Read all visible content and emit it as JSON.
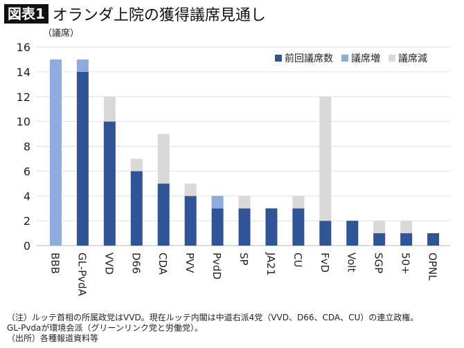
{
  "title": {
    "badge": "図表1",
    "text": "オランダ上院の獲得議席見通し"
  },
  "chart_data": {
    "type": "bar",
    "stacked": true,
    "ylabel": "（議席）",
    "ylim": [
      0,
      16
    ],
    "yticks": [
      0,
      2,
      4,
      6,
      8,
      10,
      12,
      14,
      16
    ],
    "grid": true,
    "legend_position": "top-right",
    "categories": [
      "BBB",
      "GL-PvdA",
      "VVD",
      "D66",
      "CDA",
      "PVV",
      "PvdD",
      "SP",
      "JA21",
      "CU",
      "FvD",
      "Volt",
      "SGP",
      "50+",
      "OPNL"
    ],
    "series": [
      {
        "name": "前回議席数",
        "color": "#2f5597",
        "values": [
          0,
          14,
          10,
          6,
          5,
          4,
          3,
          3,
          3,
          3,
          2,
          2,
          1,
          1,
          1
        ]
      },
      {
        "name": "議席増",
        "color": "#8faadc",
        "values": [
          15,
          1,
          0,
          0,
          0,
          0,
          1,
          0,
          0,
          0,
          0,
          0,
          0,
          0,
          0
        ]
      },
      {
        "name": "議席減",
        "color": "#d9d9d9",
        "values": [
          0,
          0,
          2,
          1,
          4,
          1,
          0,
          1,
          0,
          1,
          10,
          0,
          1,
          1,
          0
        ]
      }
    ]
  },
  "notes": [
    "（注）ルッテ首相の所属政党はVVD。現在ルッテ内閣は中道右派4党（VVD、D66、CDA、CU）の連立政権。",
    "GL-Pvdaが環境会派（グリーンリンク党と労働党）。",
    "（出所）各種報道資料等"
  ]
}
